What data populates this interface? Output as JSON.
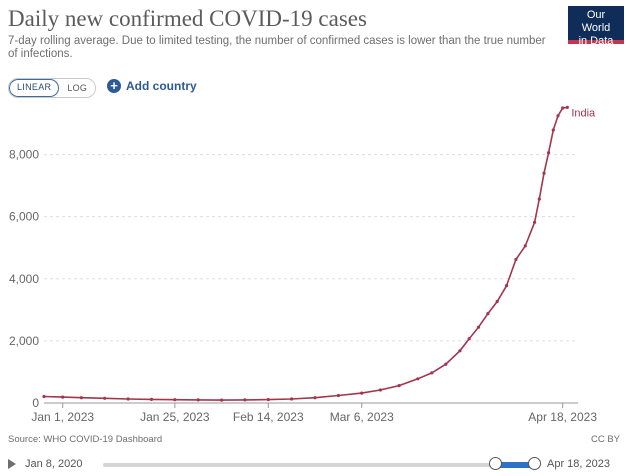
{
  "header": {
    "title": "Daily new confirmed COVID-19 cases",
    "subtitle": "7-day rolling average. Due to limited testing, the number of confirmed cases is lower than the true number of infections.",
    "logo_line1": "Our World",
    "logo_line2": "in Data"
  },
  "controls": {
    "linear_label": "LINEAR",
    "log_label": "LOG",
    "add_country_label": "Add country",
    "scale_selected": "LINEAR"
  },
  "footer": {
    "source": "Source: WHO COVID-19 Dashboard",
    "license": "CC BY"
  },
  "timeline": {
    "start_label": "Jan 8, 2020",
    "end_label": "Apr 18, 2023"
  },
  "colors": {
    "series": "#a2364d",
    "grid": "#dddddd",
    "axis_text": "#666666"
  },
  "chart_data": {
    "type": "line",
    "title": "Daily new confirmed COVID-19 cases",
    "xlabel": "",
    "ylabel": "",
    "ylim": [
      0,
      9500
    ],
    "xlim": [
      "2022-12-28",
      "2023-04-20"
    ],
    "yticks": [
      0,
      2000,
      4000,
      6000,
      8000
    ],
    "ytick_labels": [
      "0",
      "2,000",
      "4,000",
      "6,000",
      "8,000"
    ],
    "xticks": [
      "2023-01-01",
      "2023-01-25",
      "2023-02-14",
      "2023-03-06",
      "2023-04-18"
    ],
    "xtick_labels": [
      "Jan 1, 2023",
      "Jan 25, 2023",
      "Feb 14, 2023",
      "Mar 6, 2023",
      "Apr 18, 2023"
    ],
    "grid": true,
    "series": [
      {
        "name": "India",
        "x": [
          "2022-12-28",
          "2023-01-01",
          "2023-01-05",
          "2023-01-10",
          "2023-01-15",
          "2023-01-20",
          "2023-01-25",
          "2023-01-30",
          "2023-02-04",
          "2023-02-09",
          "2023-02-14",
          "2023-02-19",
          "2023-02-24",
          "2023-03-01",
          "2023-03-06",
          "2023-03-10",
          "2023-03-14",
          "2023-03-18",
          "2023-03-21",
          "2023-03-24",
          "2023-03-27",
          "2023-03-29",
          "2023-03-31",
          "2023-04-02",
          "2023-04-04",
          "2023-04-06",
          "2023-04-08",
          "2023-04-10",
          "2023-04-12",
          "2023-04-13",
          "2023-04-14",
          "2023-04-15",
          "2023-04-16",
          "2023-04-17",
          "2023-04-18",
          "2023-04-19"
        ],
        "values": [
          210,
          190,
          170,
          150,
          130,
          115,
          105,
          100,
          95,
          100,
          110,
          130,
          170,
          240,
          320,
          420,
          560,
          780,
          970,
          1250,
          1680,
          2070,
          2440,
          2880,
          3270,
          3780,
          4620,
          5060,
          5820,
          6570,
          7400,
          8060,
          8790,
          9250,
          9500,
          9520
        ]
      }
    ],
    "annotations": [
      {
        "series": "India",
        "label": "India"
      }
    ]
  }
}
